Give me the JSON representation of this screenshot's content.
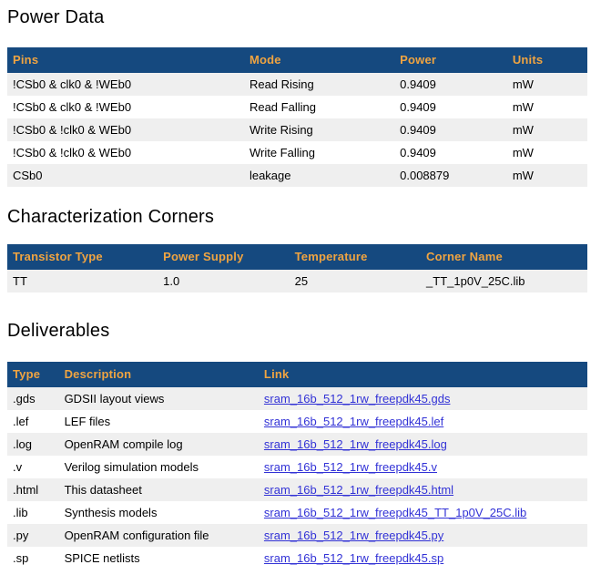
{
  "colors": {
    "table_header_bg": "#15497f",
    "table_header_text": "#f0a441",
    "row_stripe": "#efefef",
    "link_blue": "#3232d6",
    "body_text": "#000000"
  },
  "sections": {
    "power": {
      "title": "Power Data",
      "headers": [
        "Pins",
        "Mode",
        "Power",
        "Units"
      ],
      "rows": [
        {
          "pins": "!CSb0 & clk0 & !WEb0",
          "mode": "Read Rising",
          "power": "0.9409",
          "units": "mW"
        },
        {
          "pins": "!CSb0 & clk0 & !WEb0",
          "mode": "Read Falling",
          "power": "0.9409",
          "units": "mW"
        },
        {
          "pins": "!CSb0 & !clk0 & WEb0",
          "mode": "Write Rising",
          "power": "0.9409",
          "units": "mW"
        },
        {
          "pins": "!CSb0 & !clk0 & WEb0",
          "mode": "Write Falling",
          "power": "0.9409",
          "units": "mW"
        },
        {
          "pins": "CSb0",
          "mode": "leakage",
          "power": "0.008879",
          "units": "mW"
        }
      ]
    },
    "corners": {
      "title": "Characterization Corners",
      "headers": [
        "Transistor Type",
        "Power Supply",
        "Temperature",
        "Corner Name"
      ],
      "rows": [
        {
          "transistor_type": "TT",
          "power_supply": "1.0",
          "temperature": "25",
          "corner_name": "_TT_1p0V_25C.lib"
        }
      ]
    },
    "deliverables": {
      "title": "Deliverables",
      "headers": [
        "Type",
        "Description",
        "Link"
      ],
      "rows": [
        {
          "type": ".gds",
          "description": "GDSII layout views",
          "link": "sram_16b_512_1rw_freepdk45.gds"
        },
        {
          "type": ".lef",
          "description": "LEF files",
          "link": "sram_16b_512_1rw_freepdk45.lef"
        },
        {
          "type": ".log",
          "description": "OpenRAM compile log",
          "link": "sram_16b_512_1rw_freepdk45.log"
        },
        {
          "type": ".v",
          "description": "Verilog simulation models",
          "link": "sram_16b_512_1rw_freepdk45.v"
        },
        {
          "type": ".html",
          "description": "This datasheet",
          "link": "sram_16b_512_1rw_freepdk45.html"
        },
        {
          "type": ".lib",
          "description": "Synthesis models",
          "link": "sram_16b_512_1rw_freepdk45_TT_1p0V_25C.lib"
        },
        {
          "type": ".py",
          "description": "OpenRAM configuration file",
          "link": "sram_16b_512_1rw_freepdk45.py"
        },
        {
          "type": ".sp",
          "description": "SPICE netlists",
          "link": "sram_16b_512_1rw_freepdk45.sp"
        }
      ]
    }
  }
}
